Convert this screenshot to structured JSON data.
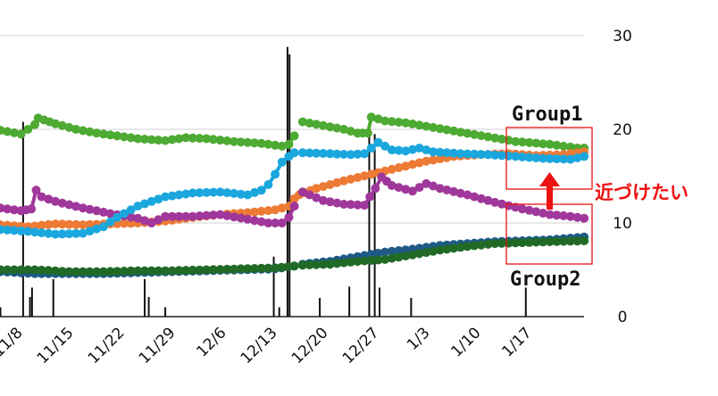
{
  "chart_data": {
    "type": "line",
    "x_tick_labels": [
      "11/8",
      "11/15",
      "11/22",
      "11/29",
      "12/6",
      "12/13",
      "12/20",
      "12/27",
      "1/3",
      "1/10",
      "1/17"
    ],
    "y_axis": {
      "position": "right",
      "ylim": [
        0,
        30
      ],
      "ticks": [
        0,
        10,
        20,
        30
      ]
    },
    "grid": true,
    "series": [
      {
        "color": "#4daa32",
        "segments": [
          [
            [
              0,
              19.9
            ],
            [
              3,
              19.5
            ],
            [
              5,
              20.5
            ],
            [
              5.5,
              21.2
            ],
            [
              8,
              20.6
            ],
            [
              11,
              20.0
            ],
            [
              14,
              19.6
            ],
            [
              17,
              19.3
            ],
            [
              20,
              19.0
            ],
            [
              24,
              18.8
            ],
            [
              27,
              19.1
            ],
            [
              30,
              19.0
            ],
            [
              34,
              18.7
            ],
            [
              38,
              18.5
            ],
            [
              41,
              18.2
            ],
            [
              42,
              18.4
            ],
            [
              42.8,
              19.3
            ]
          ],
          [
            [
              44,
              20.8
            ],
            [
              47,
              20.4
            ],
            [
              50,
              20.0
            ],
            [
              52,
              19.6
            ],
            [
              53.5,
              19.6
            ],
            [
              54,
              21.3
            ],
            [
              56,
              20.9
            ],
            [
              59,
              20.7
            ],
            [
              63,
              20.2
            ],
            [
              67,
              19.7
            ],
            [
              71,
              19.2
            ],
            [
              75,
              18.7
            ],
            [
              80,
              18.4
            ],
            [
              84,
              18.0
            ],
            [
              85,
              18.0
            ]
          ]
        ]
      },
      {
        "color": "#ed7a35",
        "segments": [
          [
            [
              0,
              9.8
            ],
            [
              4,
              9.6
            ],
            [
              8,
              9.9
            ],
            [
              12,
              9.8
            ],
            [
              16,
              9.9
            ],
            [
              20,
              10.0
            ],
            [
              24,
              10.2
            ],
            [
              28,
              10.6
            ],
            [
              32,
              10.9
            ],
            [
              36,
              11.1
            ],
            [
              40,
              11.4
            ],
            [
              42,
              11.8
            ],
            [
              42.8,
              12.6
            ]
          ],
          [
            [
              43.5,
              13.0
            ],
            [
              46,
              13.7
            ],
            [
              50,
              14.5
            ],
            [
              54,
              15.2
            ],
            [
              58,
              15.9
            ],
            [
              62,
              16.6
            ],
            [
              66,
              17.1
            ],
            [
              70,
              17.3
            ],
            [
              74,
              17.4
            ],
            [
              78,
              17.2
            ],
            [
              82,
              17.3
            ],
            [
              85,
              17.6
            ]
          ]
        ]
      },
      {
        "color": "#a0379b",
        "segments": [
          [
            [
              0,
              11.6
            ],
            [
              3,
              11.3
            ],
            [
              4.5,
              11.5
            ],
            [
              5.2,
              13.5
            ],
            [
              6,
              12.8
            ],
            [
              8,
              12.3
            ],
            [
              12,
              11.6
            ],
            [
              16,
              11.0
            ],
            [
              20,
              10.5
            ],
            [
              22,
              10.0
            ],
            [
              24,
              10.7
            ],
            [
              28,
              10.7
            ],
            [
              32,
              10.9
            ],
            [
              36,
              10.4
            ],
            [
              39,
              10.0
            ],
            [
              41,
              10.0
            ],
            [
              42,
              10.6
            ],
            [
              42.8,
              11.8
            ]
          ],
          [
            [
              44,
              13.3
            ],
            [
              47,
              12.4
            ],
            [
              50,
              12.0
            ],
            [
              53,
              11.9
            ],
            [
              54.6,
              13.7
            ],
            [
              55.5,
              14.9
            ],
            [
              57,
              14.0
            ],
            [
              60,
              13.4
            ],
            [
              62,
              14.2
            ],
            [
              64,
              13.7
            ],
            [
              68,
              13.0
            ],
            [
              72,
              12.2
            ],
            [
              76,
              11.5
            ],
            [
              80,
              10.9
            ],
            [
              83,
              10.7
            ],
            [
              85,
              10.5
            ]
          ]
        ]
      },
      {
        "color": "#1aa7dd",
        "segments": [
          [
            [
              0,
              9.3
            ],
            [
              4,
              9.1
            ],
            [
              8,
              8.8
            ],
            [
              12,
              8.9
            ],
            [
              15,
              9.6
            ],
            [
              17,
              10.6
            ],
            [
              20,
              11.8
            ],
            [
              24,
              12.8
            ],
            [
              28,
              13.2
            ],
            [
              32,
              13.3
            ],
            [
              36,
              13.0
            ],
            [
              38,
              13.5
            ],
            [
              39,
              14.1
            ],
            [
              40,
              15.2
            ],
            [
              41,
              16.5
            ],
            [
              42,
              17.1
            ],
            [
              42.8,
              17.5
            ]
          ],
          [
            [
              44,
              17.5
            ],
            [
              48,
              17.4
            ],
            [
              51,
              17.3
            ],
            [
              53,
              17.4
            ],
            [
              55,
              18.6
            ],
            [
              57,
              17.8
            ],
            [
              59,
              17.7
            ],
            [
              61,
              18.0
            ],
            [
              63,
              17.6
            ],
            [
              67,
              17.4
            ],
            [
              71,
              17.3
            ],
            [
              75,
              17.1
            ],
            [
              79,
              16.9
            ],
            [
              83,
              16.8
            ],
            [
              85,
              17.1
            ]
          ]
        ]
      },
      {
        "color": "#1d5a86",
        "segments": [
          [
            [
              0,
              4.8
            ],
            [
              5,
              4.6
            ],
            [
              10,
              4.6
            ],
            [
              15,
              4.6
            ],
            [
              20,
              4.7
            ],
            [
              25,
              4.8
            ],
            [
              30,
              4.9
            ],
            [
              35,
              5.0
            ],
            [
              40,
              5.1
            ],
            [
              42.8,
              5.4
            ]
          ],
          [
            [
              44,
              5.6
            ],
            [
              48,
              5.9
            ],
            [
              52,
              6.4
            ],
            [
              56,
              6.9
            ],
            [
              60,
              7.2
            ],
            [
              64,
              7.6
            ],
            [
              68,
              7.8
            ],
            [
              72,
              8.0
            ],
            [
              76,
              8.1
            ],
            [
              80,
              8.2
            ],
            [
              85,
              8.5
            ]
          ]
        ]
      },
      {
        "color": "#216a26",
        "segments": [
          [
            [
              0,
              5.0
            ],
            [
              5,
              5.0
            ],
            [
              10,
              4.8
            ],
            [
              15,
              4.8
            ],
            [
              20,
              4.9
            ],
            [
              25,
              4.9
            ],
            [
              30,
              5.0
            ],
            [
              35,
              5.1
            ],
            [
              40,
              5.2
            ],
            [
              42.8,
              5.4
            ]
          ],
          [
            [
              44,
              5.5
            ],
            [
              48,
              5.6
            ],
            [
              52,
              5.9
            ],
            [
              56,
              6.1
            ],
            [
              60,
              6.6
            ],
            [
              64,
              7.1
            ],
            [
              68,
              7.5
            ],
            [
              72,
              7.8
            ],
            [
              76,
              7.9
            ],
            [
              80,
              8.0
            ],
            [
              85,
              8.1
            ]
          ]
        ]
      }
    ],
    "bars": [
      {
        "x": 0,
        "v": 1.0
      },
      {
        "x": 3.3,
        "v": 20.8
      },
      {
        "x": 4.3,
        "v": 2.1
      },
      {
        "x": 4.6,
        "v": 3.1
      },
      {
        "x": 7.7,
        "v": 4.0
      },
      {
        "x": 21.0,
        "v": 4.0
      },
      {
        "x": 21.6,
        "v": 2.1
      },
      {
        "x": 24.0,
        "v": 1.0
      },
      {
        "x": 39.8,
        "v": 6.4
      },
      {
        "x": 40.6,
        "v": 1.0
      },
      {
        "x": 41.8,
        "v": 28.8
      },
      {
        "x": 42.1,
        "v": 28.0
      },
      {
        "x": 46.5,
        "v": 2.0
      },
      {
        "x": 50.8,
        "v": 3.2
      },
      {
        "x": 53.7,
        "v": 20.2
      },
      {
        "x": 54.5,
        "v": 19.5
      },
      {
        "x": 55.2,
        "v": 3.1
      },
      {
        "x": 59.8,
        "v": 2.0
      },
      {
        "x": 76.5,
        "v": 3.1
      }
    ],
    "annotations": {
      "group1_label": "Group1",
      "group2_label": "Group2",
      "callout_text": "近づけたい",
      "highlight_color": "#ee1111"
    }
  }
}
